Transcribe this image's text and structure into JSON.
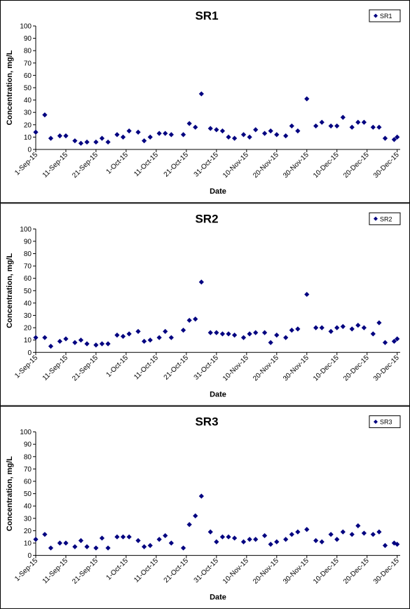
{
  "chart_data": [
    {
      "type": "scatter",
      "title": "SR1",
      "xlabel": "Date",
      "ylabel": "Concentration, mg/L",
      "legend": "upper right",
      "marker": "diamond",
      "x": [
        "2015-09-01",
        "2015-09-04",
        "2015-09-06",
        "2015-09-09",
        "2015-09-11",
        "2015-09-14",
        "2015-09-16",
        "2015-09-18",
        "2015-09-21",
        "2015-09-23",
        "2015-09-25",
        "2015-09-28",
        "2015-09-30",
        "2015-10-02",
        "2015-10-05",
        "2015-10-07",
        "2015-10-09",
        "2015-10-12",
        "2015-10-14",
        "2015-10-16",
        "2015-10-20",
        "2015-10-22",
        "2015-10-24",
        "2015-10-26",
        "2015-10-29",
        "2015-10-31",
        "2015-11-02",
        "2015-11-04",
        "2015-11-06",
        "2015-11-09",
        "2015-11-11",
        "2015-11-13",
        "2015-11-16",
        "2015-11-18",
        "2015-11-20",
        "2015-11-23",
        "2015-11-25",
        "2015-11-27",
        "2015-11-30",
        "2015-12-03",
        "2015-12-05",
        "2015-12-08",
        "2015-12-10",
        "2015-12-12",
        "2015-12-15",
        "2015-12-17",
        "2015-12-19",
        "2015-12-22",
        "2015-12-24",
        "2015-12-26",
        "2015-12-29",
        "2015-12-30"
      ],
      "series": [
        {
          "name": "SR1",
          "color": "#000080",
          "values": [
            14,
            28,
            9,
            11,
            11,
            7,
            5,
            6,
            6,
            9,
            6,
            12,
            10,
            15,
            14,
            7,
            10,
            13,
            13,
            12,
            12,
            21,
            18,
            45,
            17,
            16,
            15,
            10,
            9,
            12,
            10,
            16,
            13,
            15,
            12,
            11,
            19,
            15,
            41,
            19,
            22,
            19,
            19,
            26,
            18,
            22,
            22,
            18,
            18,
            9,
            8,
            10
          ]
        }
      ],
      "xlim": [
        "2015-09-01",
        "2015-12-31"
      ],
      "xticks": [
        {
          "value": "2015-09-01",
          "label": "1-Sep-15"
        },
        {
          "value": "2015-09-11",
          "label": "11-Sep-15"
        },
        {
          "value": "2015-09-21",
          "label": "21-Sep-15"
        },
        {
          "value": "2015-10-01",
          "label": "1-Oct-15"
        },
        {
          "value": "2015-10-11",
          "label": "11-Oct-15"
        },
        {
          "value": "2015-10-21",
          "label": "21-Oct-15"
        },
        {
          "value": "2015-10-31",
          "label": "31-Oct-15"
        },
        {
          "value": "2015-11-10",
          "label": "10-Nov-15"
        },
        {
          "value": "2015-11-20",
          "label": "20-Nov-15"
        },
        {
          "value": "2015-11-30",
          "label": "30-Nov-15"
        },
        {
          "value": "2015-12-10",
          "label": "10-Dec-15"
        },
        {
          "value": "2015-12-20",
          "label": "20-Dec-15"
        },
        {
          "value": "2015-12-30",
          "label": "30-Dec-15"
        }
      ],
      "ylim": [
        0,
        100
      ],
      "yticks": [
        0,
        10,
        20,
        30,
        40,
        50,
        60,
        70,
        80,
        90,
        100
      ]
    },
    {
      "type": "scatter",
      "title": "SR2",
      "xlabel": "Date",
      "ylabel": "Concentration, mg/L",
      "legend": "upper right",
      "marker": "diamond",
      "x": [
        "2015-09-01",
        "2015-09-04",
        "2015-09-06",
        "2015-09-09",
        "2015-09-11",
        "2015-09-14",
        "2015-09-16",
        "2015-09-18",
        "2015-09-21",
        "2015-09-23",
        "2015-09-25",
        "2015-09-28",
        "2015-09-30",
        "2015-10-02",
        "2015-10-05",
        "2015-10-07",
        "2015-10-09",
        "2015-10-12",
        "2015-10-14",
        "2015-10-16",
        "2015-10-20",
        "2015-10-22",
        "2015-10-24",
        "2015-10-26",
        "2015-10-29",
        "2015-10-31",
        "2015-11-02",
        "2015-11-04",
        "2015-11-06",
        "2015-11-09",
        "2015-11-11",
        "2015-11-13",
        "2015-11-16",
        "2015-11-18",
        "2015-11-20",
        "2015-11-23",
        "2015-11-25",
        "2015-11-27",
        "2015-11-30",
        "2015-12-03",
        "2015-12-05",
        "2015-12-08",
        "2015-12-10",
        "2015-12-12",
        "2015-12-15",
        "2015-12-17",
        "2015-12-19",
        "2015-12-22",
        "2015-12-24",
        "2015-12-26",
        "2015-12-29",
        "2015-12-30"
      ],
      "series": [
        {
          "name": "SR2",
          "color": "#000080",
          "values": [
            12,
            12,
            5,
            9,
            11,
            8,
            10,
            7,
            6,
            7,
            7,
            14,
            13,
            15,
            17,
            9,
            10,
            12,
            17,
            12,
            18,
            26,
            27,
            57,
            16,
            16,
            15,
            15,
            14,
            12,
            15,
            16,
            16,
            8,
            14,
            12,
            18,
            19,
            47,
            20,
            20,
            17,
            20,
            21,
            19,
            22,
            20,
            15,
            24,
            8,
            9,
            11
          ]
        }
      ],
      "xlim": [
        "2015-09-01",
        "2015-12-31"
      ],
      "xticks": [
        {
          "value": "2015-09-01",
          "label": "1-Sep-15"
        },
        {
          "value": "2015-09-11",
          "label": "11-Sep-15"
        },
        {
          "value": "2015-09-21",
          "label": "21-Sep-15"
        },
        {
          "value": "2015-10-01",
          "label": "1-Oct-15"
        },
        {
          "value": "2015-10-11",
          "label": "11-Oct-15"
        },
        {
          "value": "2015-10-21",
          "label": "21-Oct-15"
        },
        {
          "value": "2015-10-31",
          "label": "31-Oct-15"
        },
        {
          "value": "2015-11-10",
          "label": "10-Nov-15"
        },
        {
          "value": "2015-11-20",
          "label": "20-Nov-15"
        },
        {
          "value": "2015-11-30",
          "label": "30-Nov-15"
        },
        {
          "value": "2015-12-10",
          "label": "10-Dec-15"
        },
        {
          "value": "2015-12-20",
          "label": "20-Dec-15"
        },
        {
          "value": "2015-12-30",
          "label": "30-Dec-15"
        }
      ],
      "ylim": [
        0,
        100
      ],
      "yticks": [
        0,
        10,
        20,
        30,
        40,
        50,
        60,
        70,
        80,
        90,
        100
      ]
    },
    {
      "type": "scatter",
      "title": "SR3",
      "xlabel": "Date",
      "ylabel": "Concentration, mg/L",
      "legend": "upper right",
      "marker": "diamond",
      "x": [
        "2015-09-01",
        "2015-09-04",
        "2015-09-06",
        "2015-09-09",
        "2015-09-11",
        "2015-09-14",
        "2015-09-16",
        "2015-09-18",
        "2015-09-21",
        "2015-09-23",
        "2015-09-25",
        "2015-09-28",
        "2015-09-30",
        "2015-10-02",
        "2015-10-05",
        "2015-10-07",
        "2015-10-09",
        "2015-10-12",
        "2015-10-14",
        "2015-10-16",
        "2015-10-20",
        "2015-10-22",
        "2015-10-24",
        "2015-10-26",
        "2015-10-29",
        "2015-10-31",
        "2015-11-02",
        "2015-11-04",
        "2015-11-06",
        "2015-11-09",
        "2015-11-11",
        "2015-11-13",
        "2015-11-16",
        "2015-11-18",
        "2015-11-20",
        "2015-11-23",
        "2015-11-25",
        "2015-11-27",
        "2015-11-30",
        "2015-12-03",
        "2015-12-05",
        "2015-12-08",
        "2015-12-10",
        "2015-12-12",
        "2015-12-15",
        "2015-12-17",
        "2015-12-19",
        "2015-12-22",
        "2015-12-24",
        "2015-12-26",
        "2015-12-29",
        "2015-12-30"
      ],
      "series": [
        {
          "name": "SR3",
          "color": "#000080",
          "values": [
            13,
            17,
            6,
            10,
            10,
            7,
            12,
            7,
            6,
            14,
            6,
            15,
            15,
            15,
            12,
            7,
            8,
            13,
            16,
            10,
            6,
            25,
            32,
            48,
            19,
            11,
            15,
            15,
            14,
            11,
            13,
            13,
            16,
            9,
            11,
            13,
            17,
            19,
            21,
            12,
            11,
            17,
            13,
            19,
            17,
            24,
            18,
            17,
            19,
            8,
            10,
            9
          ]
        }
      ],
      "xlim": [
        "2015-09-01",
        "2015-12-31"
      ],
      "xticks": [
        {
          "value": "2015-09-01",
          "label": "1-Sep-15"
        },
        {
          "value": "2015-09-11",
          "label": "11-Sep-15"
        },
        {
          "value": "2015-09-21",
          "label": "21-Sep-15"
        },
        {
          "value": "2015-10-01",
          "label": "1-Oct-15"
        },
        {
          "value": "2015-10-11",
          "label": "11-Oct-15"
        },
        {
          "value": "2015-10-21",
          "label": "21-Oct-15"
        },
        {
          "value": "2015-10-31",
          "label": "31-Oct-15"
        },
        {
          "value": "2015-11-10",
          "label": "10-Nov-15"
        },
        {
          "value": "2015-11-20",
          "label": "20-Nov-15"
        },
        {
          "value": "2015-11-30",
          "label": "30-Nov-15"
        },
        {
          "value": "2015-12-10",
          "label": "10-Dec-15"
        },
        {
          "value": "2015-12-20",
          "label": "20-Dec-15"
        },
        {
          "value": "2015-12-30",
          "label": "30-Dec-15"
        }
      ],
      "ylim": [
        0,
        100
      ],
      "yticks": [
        0,
        10,
        20,
        30,
        40,
        50,
        60,
        70,
        80,
        90,
        100
      ]
    }
  ]
}
